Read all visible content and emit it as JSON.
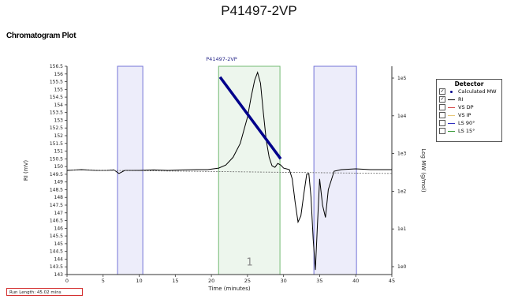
{
  "page": {
    "title": "P41497-2VP",
    "section_title": "Chromatogram Plot"
  },
  "legend": {
    "title": "Detector",
    "items": [
      {
        "label": "Calculated MW",
        "checked": true,
        "color": "#00008b",
        "marker": "dot"
      },
      {
        "label": "RI",
        "checked": true,
        "color": "#000000",
        "marker": "line"
      },
      {
        "label": "VS DP",
        "checked": false,
        "color": "#d44040",
        "marker": "line"
      },
      {
        "label": "VS IP",
        "checked": false,
        "color": "#e8c878",
        "marker": "line"
      },
      {
        "label": "LS 90°",
        "checked": false,
        "color": "#3030c0",
        "marker": "line"
      },
      {
        "label": "LS 15°",
        "checked": false,
        "color": "#3a9a3a",
        "marker": "line"
      }
    ]
  },
  "footer": {
    "text": "Run Length: 45.02 mins"
  },
  "chart_data": {
    "type": "line",
    "title": "P41497-2VP",
    "xlabel": "Time (minutes)",
    "ylabel": "RI (mV)",
    "y2label": "Log MW (g/mol)",
    "xlim": [
      0,
      45
    ],
    "ylim": [
      143,
      156.5
    ],
    "xticks": [
      0,
      5,
      10,
      15,
      20,
      25,
      30,
      35,
      40,
      45
    ],
    "yticks": [
      143,
      143.5,
      144,
      144.5,
      145,
      145.5,
      146,
      146.5,
      147,
      147.5,
      148,
      148.5,
      149,
      149.5,
      150,
      150.5,
      151,
      151.5,
      152,
      152.5,
      153,
      153.5,
      154,
      154.5,
      155,
      155.5,
      156,
      156.5
    ],
    "y2scale": "log",
    "y2ticks": [
      "1e0",
      "1e1",
      "1e2",
      "1e3",
      "1e4",
      "1e5"
    ],
    "grid": false,
    "legend_position": "right",
    "shaded_regions": [
      {
        "x": [
          7,
          10.5
        ],
        "color": "#3c3cc8"
      },
      {
        "x": [
          21,
          29.5
        ],
        "color": "#3ca03c",
        "label": "1"
      },
      {
        "x": [
          34.2,
          40.1
        ],
        "color": "#3c3cc8"
      }
    ],
    "series": [
      {
        "name": "RI",
        "color": "#000000",
        "x": [
          0,
          2,
          4,
          5.5,
          6.5,
          7.2,
          8,
          10,
          12,
          14,
          16,
          18,
          19.5,
          21,
          22,
          23,
          24,
          25,
          25.5,
          26,
          26.4,
          26.8,
          27.2,
          27.6,
          28,
          28.4,
          28.8,
          29.2,
          29.6,
          30,
          30.4,
          30.8,
          31.2,
          31.6,
          32,
          32.4,
          32.8,
          33.2,
          33.5,
          33.8,
          34.1,
          34.4,
          34.7,
          35,
          35.4,
          35.8,
          36.2,
          37,
          38,
          40,
          42,
          45
        ],
        "y": [
          149.75,
          149.8,
          149.75,
          149.75,
          149.78,
          149.55,
          149.75,
          149.75,
          149.78,
          149.75,
          149.78,
          149.8,
          149.8,
          149.9,
          150.1,
          150.6,
          151.5,
          153.2,
          154.5,
          155.6,
          156.1,
          155.4,
          153.5,
          151.7,
          150.6,
          150.05,
          149.95,
          150.2,
          150.1,
          149.9,
          149.85,
          149.8,
          149.2,
          147.7,
          146.4,
          146.8,
          148.2,
          149.5,
          149.55,
          148,
          145.3,
          143.3,
          146.3,
          149.2,
          147.5,
          146.7,
          148.5,
          149.7,
          149.8,
          149.85,
          149.8,
          149.8
        ]
      },
      {
        "name": "Calculated MW",
        "color": "#00008b",
        "x": [
          21.2,
          29.6
        ],
        "y": [
          155.8,
          150.5
        ]
      },
      {
        "name": "baseline",
        "color": "#666666",
        "x": [
          0,
          45
        ],
        "y": [
          149.78,
          149.55
        ]
      }
    ],
    "annotations": [
      {
        "text": "1",
        "x": 25.3,
        "y": 143.6
      }
    ]
  }
}
